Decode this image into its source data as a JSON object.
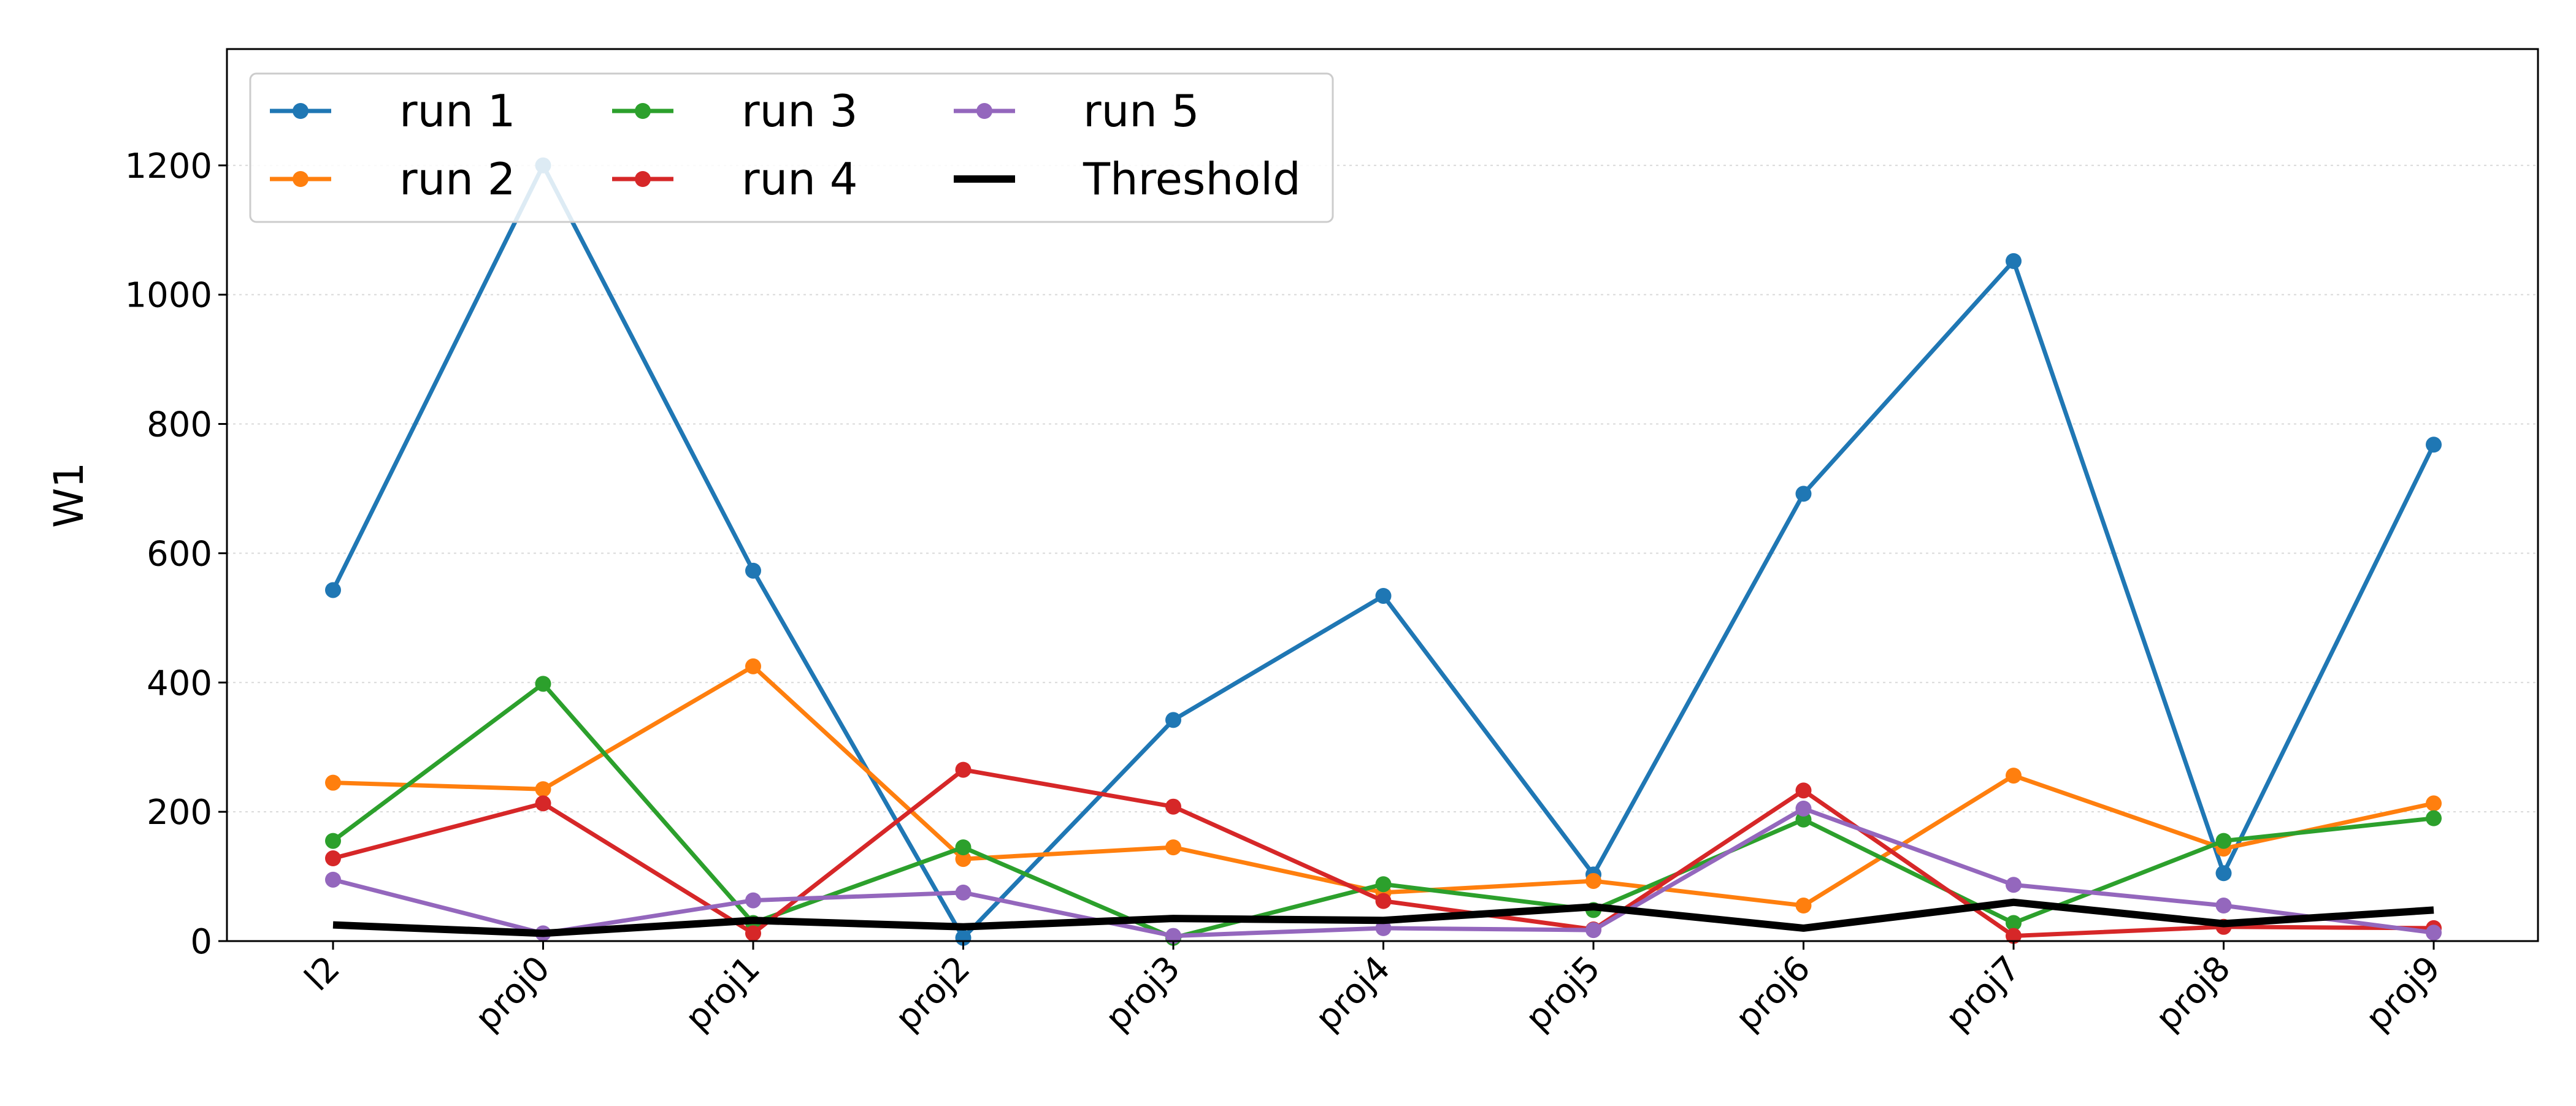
{
  "chart_data": {
    "type": "line",
    "title": "",
    "xlabel": "",
    "ylabel": "W1",
    "categories": [
      "l2",
      "proj0",
      "proj1",
      "proj2",
      "proj3",
      "proj4",
      "proj5",
      "proj6",
      "proj7",
      "proj8",
      "proj9"
    ],
    "ylim": [
      0,
      1380
    ],
    "yticks": [
      0,
      200,
      400,
      600,
      800,
      1000,
      1200
    ],
    "grid": "horizontal-dotted",
    "legend_position": "upper-left",
    "legend_columns": 3,
    "series": [
      {
        "name": "run 1",
        "color": "#1f77b4",
        "marker": "circle",
        "values": [
          543,
          1200,
          573,
          5,
          342,
          534,
          103,
          692,
          1052,
          105,
          768
        ]
      },
      {
        "name": "run 2",
        "color": "#ff7f0e",
        "marker": "circle",
        "values": [
          245,
          235,
          425,
          127,
          145,
          75,
          93,
          55,
          256,
          143,
          213
        ]
      },
      {
        "name": "run 3",
        "color": "#2ca02c",
        "marker": "circle",
        "values": [
          155,
          398,
          28,
          145,
          5,
          88,
          48,
          188,
          28,
          155,
          190
        ]
      },
      {
        "name": "run 4",
        "color": "#d62728",
        "marker": "circle",
        "values": [
          128,
          213,
          12,
          265,
          208,
          62,
          18,
          233,
          8,
          22,
          20
        ]
      },
      {
        "name": "run 5",
        "color": "#9467bd",
        "marker": "circle",
        "values": [
          95,
          12,
          63,
          75,
          8,
          20,
          17,
          205,
          87,
          55,
          13
        ]
      },
      {
        "name": "Threshold",
        "color": "#000000",
        "marker": "none",
        "values": [
          25,
          12,
          32,
          22,
          35,
          32,
          53,
          20,
          60,
          27,
          48
        ]
      }
    ]
  }
}
